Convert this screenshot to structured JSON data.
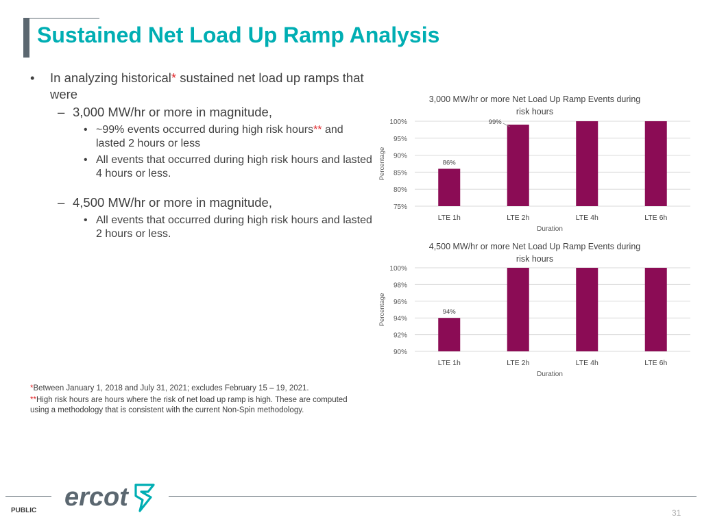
{
  "slide": {
    "title": "Sustained Net Load Up Ramp Analysis",
    "bullets": {
      "intro_a": "In analyzing historical",
      "intro_star": "*",
      "intro_b": " sustained net load up ramps that were",
      "sub1": "3,000 MW/hr or more in magnitude,",
      "sub1_items": [
        {
          "a": "~99% events occurred during high risk hours",
          "star": "**",
          "b": " and lasted 2 hours or less"
        },
        {
          "a": "All events that occurred during high risk hours and lasted 4 hours or less.",
          "star": "",
          "b": ""
        }
      ],
      "sub2": "4,500 MW/hr or more in magnitude,",
      "sub2_items": [
        {
          "a": "All events that occurred during high risk hours and lasted 2 hours or less."
        }
      ]
    },
    "footnotes": [
      {
        "mark": "*",
        "text": "Between January 1, 2018 and July 31, 2021; excludes February 15 – 19, 2021."
      },
      {
        "mark": "**",
        "text": "High risk hours are hours where the risk of net load up ramp is high. These are computed using a methodology that is consistent with the current Non-Spin methodology."
      }
    ],
    "footer": {
      "label": "PUBLIC",
      "page": "31",
      "logo_text": "ercot"
    },
    "colors": {
      "title": "#00aeb3",
      "bar": "#8b0c55",
      "footnote_mark": "#e0262a",
      "logo": "#5b6770",
      "logo_accent": "#00aeb3"
    }
  },
  "chart_data": [
    {
      "type": "bar",
      "title_lines": [
        "3,000 MW/hr or more Net Load Up Ramp Events during",
        "risk hours"
      ],
      "xlabel": "Duration",
      "ylabel": "Percentage",
      "categories": [
        "LTE 1h",
        "LTE 2h",
        "LTE 4h",
        "LTE 6h"
      ],
      "values": [
        86,
        99,
        100,
        100
      ],
      "data_labels": [
        "86%",
        "99%",
        "",
        ""
      ],
      "ylim": [
        75,
        100
      ],
      "yticks": [
        75,
        80,
        85,
        90,
        95,
        100
      ],
      "ytick_labels": [
        "75%",
        "80%",
        "85%",
        "90%",
        "95%",
        "100%"
      ],
      "grid": true
    },
    {
      "type": "bar",
      "title_lines": [
        "4,500 MW/hr or more Net Load Up Ramp Events during",
        "risk hours"
      ],
      "xlabel": "Duration",
      "ylabel": "Percentage",
      "categories": [
        "LTE 1h",
        "LTE 2h",
        "LTE 4h",
        "LTE 6h"
      ],
      "values": [
        94,
        100,
        100,
        100
      ],
      "data_labels": [
        "94%",
        "",
        "",
        ""
      ],
      "ylim": [
        90,
        100
      ],
      "yticks": [
        90,
        92,
        94,
        96,
        98,
        100
      ],
      "ytick_labels": [
        "90%",
        "92%",
        "94%",
        "96%",
        "98%",
        "100%"
      ],
      "grid": true
    }
  ]
}
